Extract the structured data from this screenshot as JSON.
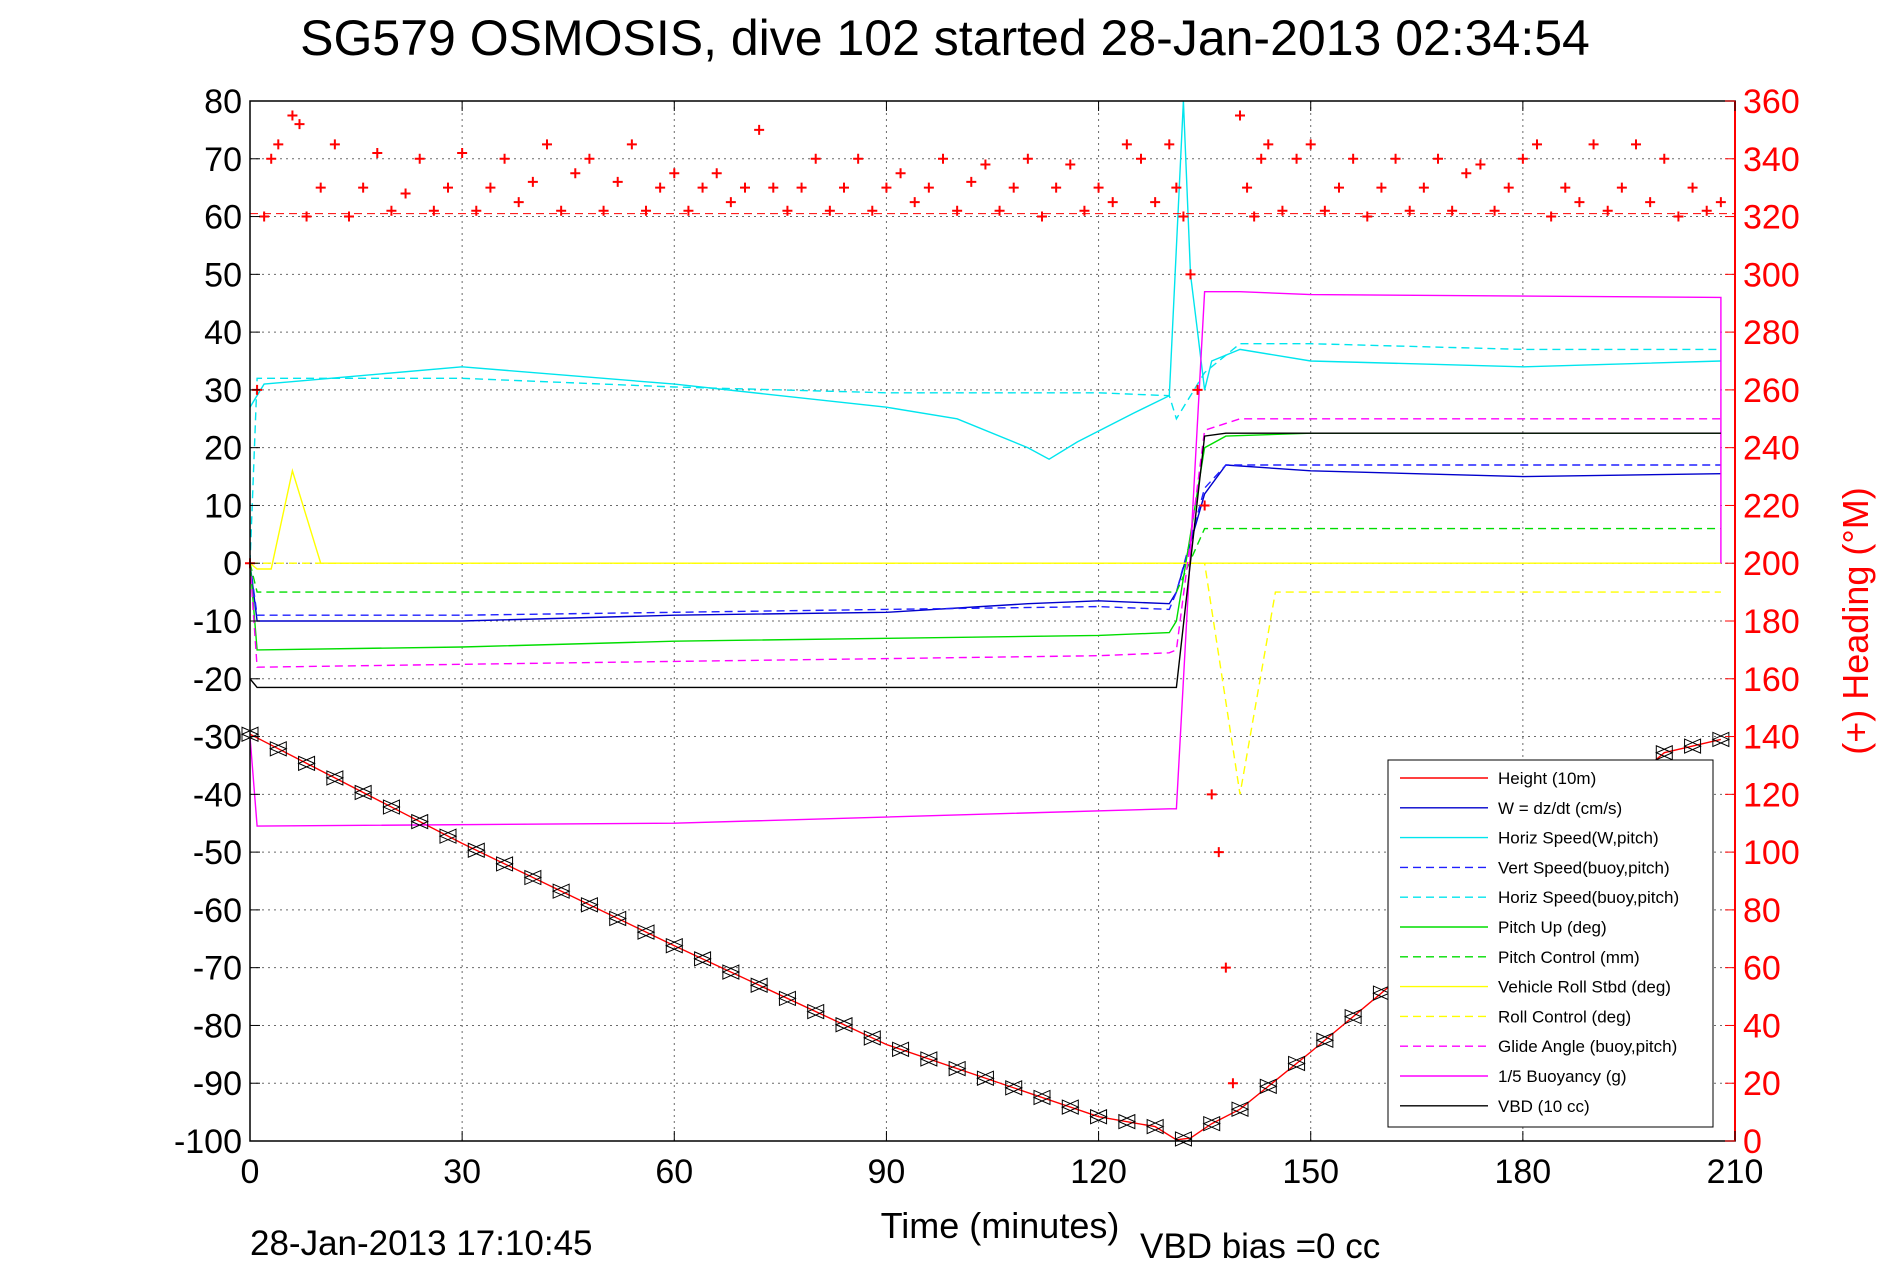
{
  "chart_data": {
    "type": "line",
    "title": "SG579 OSMOSIS, dive 102 started 28-Jan-2013 02:34:54",
    "xlabel": "Time (minutes)",
    "ylabel_right": "(+) Heading (°M)",
    "xlim": [
      0,
      210
    ],
    "ylim": [
      -100,
      80
    ],
    "ylim_right": [
      0,
      360
    ],
    "x_ticks": [
      "0",
      "30",
      "60",
      "90",
      "120",
      "150",
      "180",
      "210"
    ],
    "y_ticks": [
      "80",
      "70",
      "60",
      "50",
      "40",
      "30",
      "20",
      "10",
      "0",
      "-10",
      "-20",
      "-30",
      "-40",
      "-50",
      "-60",
      "-70",
      "-80",
      "-90",
      "-100"
    ],
    "y_ticks_right": [
      "360",
      "340",
      "320",
      "300",
      "280",
      "260",
      "240",
      "220",
      "200",
      "180",
      "160",
      "140",
      "120",
      "100",
      "80",
      "60",
      "40",
      "20",
      "0"
    ],
    "grid": true,
    "legend_position": "bottom-right",
    "colors": {
      "height": "#ff0000",
      "w": "#0000cc",
      "horiz_speed": "#00e5ee",
      "vert_speed_buoy": "#2020ff",
      "horiz_speed_buoy": "#00e5ee",
      "pitch_up": "#00dd00",
      "pitch_control": "#00dd00",
      "vehicle_roll": "#ffff00",
      "roll_control": "#ffff00",
      "glide_angle": "#ff00ff",
      "buoyancy": "#ff00ff",
      "vbd": "#000000",
      "heading": "#ff0000"
    },
    "series": [
      {
        "name": "Height (10m)",
        "style": "solid",
        "x": [
          0,
          30,
          60,
          90,
          120,
          128,
          131,
          133,
          136,
          140,
          150,
          160,
          170,
          180,
          190,
          200,
          208
        ],
        "y": [
          -29.6,
          -48.5,
          -66.2,
          -83.3,
          -95.8,
          -97.5,
          -99.8,
          -99.5,
          -97,
          -94.5,
          -84.6,
          -74.4,
          -64,
          -53.6,
          -43.2,
          -32.8,
          -30.5
        ]
      },
      {
        "name": "W = dz/dt (cm/s)",
        "style": "solid",
        "x": [
          0,
          1,
          5,
          30,
          60,
          90,
          110,
          120,
          130,
          131,
          135,
          138,
          150,
          180,
          208
        ],
        "y": [
          0,
          -10,
          -10,
          -10,
          -9,
          -8.5,
          -7,
          -6.5,
          -7,
          -5,
          12,
          17,
          16,
          15,
          15.5
        ]
      },
      {
        "name": "Horiz Speed(W,pitch)",
        "style": "solid",
        "x": [
          0,
          2,
          30,
          60,
          90,
          100,
          110,
          113,
          117,
          125,
          130,
          132,
          133,
          134,
          135,
          136,
          140,
          150,
          180,
          208
        ],
        "y": [
          27,
          31,
          34,
          31,
          27,
          25,
          20,
          18,
          21,
          26,
          29,
          80,
          50,
          40,
          30,
          35,
          37,
          35,
          34,
          35
        ]
      },
      {
        "name": "Vert Speed(buoy,pitch)",
        "style": "dashed",
        "x": [
          0,
          1,
          30,
          60,
          90,
          120,
          130,
          131,
          135,
          138,
          150,
          180,
          208
        ],
        "y": [
          0,
          -9,
          -9,
          -8.5,
          -8,
          -7.5,
          -8,
          -5,
          13,
          17,
          17,
          17,
          17
        ]
      },
      {
        "name": "Horiz Speed(buoy,pitch)",
        "style": "dashed",
        "x": [
          0,
          1,
          30,
          60,
          90,
          120,
          130,
          131,
          135,
          140,
          150,
          180,
          208
        ],
        "y": [
          0,
          32,
          32,
          30.5,
          29.5,
          29.5,
          29,
          25,
          33,
          38,
          38,
          37,
          37
        ]
      },
      {
        "name": "Pitch Up (deg)",
        "style": "solid",
        "x": [
          0,
          1,
          30,
          60,
          90,
          120,
          130,
          131,
          135,
          138,
          150,
          180,
          208
        ],
        "y": [
          0,
          -15,
          -14.5,
          -13.5,
          -13,
          -12.5,
          -12,
          -10,
          20,
          22,
          22.5,
          22.5,
          22.5
        ]
      },
      {
        "name": "Pitch Control (mm)",
        "style": "dashed",
        "x": [
          0,
          1,
          130,
          131,
          135,
          208
        ],
        "y": [
          0,
          -5,
          -5,
          -5,
          6,
          6
        ]
      },
      {
        "name": "Vehicle Roll Stbd (deg)",
        "style": "solid",
        "x": [
          0,
          1,
          3,
          6,
          10,
          130,
          131,
          135,
          208
        ],
        "y": [
          0,
          -1,
          -1,
          16,
          0,
          0,
          0,
          0,
          0
        ]
      },
      {
        "name": "Roll Control (deg)",
        "style": "dashed",
        "x": [
          0,
          1,
          10,
          130,
          131,
          135,
          140,
          145,
          208
        ],
        "y": [
          0,
          0,
          0,
          0,
          0,
          0,
          -40,
          -5,
          -5
        ]
      },
      {
        "name": "Glide Angle (buoy,pitch)",
        "style": "dashed",
        "x": [
          0,
          1,
          30,
          60,
          90,
          120,
          130,
          131,
          135,
          140,
          150,
          180,
          208
        ],
        "y": [
          0,
          -18,
          -17.5,
          -17,
          -16.5,
          -16,
          -15.5,
          -15,
          23,
          25,
          25,
          25,
          25
        ]
      },
      {
        "name": "1/5 Buoyancy (g)",
        "style": "solid",
        "x": [
          0,
          1,
          60,
          130,
          131,
          135,
          140,
          150,
          208,
          208
        ],
        "y": [
          -30,
          -45.5,
          -45,
          -42.5,
          -42.5,
          47,
          47,
          46.5,
          46,
          0
        ]
      },
      {
        "name": "VBD (10 cc)",
        "style": "solid",
        "x": [
          0,
          1,
          130,
          131,
          135,
          138,
          208
        ],
        "y": [
          -20,
          -21.5,
          -21.5,
          -21.5,
          22,
          22.5,
          22.5
        ]
      }
    ],
    "heading_series": {
      "name": "(+) Heading",
      "marker": "+",
      "axis": "right",
      "reference_line": 321,
      "x": [
        0,
        1,
        2,
        3,
        4,
        6,
        7,
        8,
        10,
        12,
        14,
        16,
        18,
        20,
        22,
        24,
        26,
        28,
        30,
        32,
        34,
        36,
        38,
        40,
        42,
        44,
        46,
        48,
        50,
        52,
        54,
        56,
        58,
        60,
        62,
        64,
        66,
        68,
        70,
        72,
        74,
        76,
        78,
        80,
        82,
        84,
        86,
        88,
        90,
        92,
        94,
        96,
        98,
        100,
        102,
        104,
        106,
        108,
        110,
        112,
        114,
        116,
        118,
        120,
        122,
        124,
        126,
        128,
        130,
        131,
        132,
        133,
        134,
        135,
        136,
        137,
        138,
        139,
        140,
        141,
        142,
        143,
        144,
        146,
        148,
        150,
        152,
        154,
        156,
        158,
        160,
        162,
        164,
        166,
        168,
        170,
        172,
        174,
        176,
        178,
        180,
        182,
        184,
        186,
        188,
        190,
        192,
        194,
        196,
        198,
        200,
        202,
        204,
        206,
        208
      ],
      "y": [
        200,
        260,
        320,
        340,
        345,
        355,
        352,
        320,
        330,
        345,
        320,
        330,
        342,
        322,
        328,
        340,
        322,
        330,
        342,
        322,
        330,
        340,
        325,
        332,
        345,
        322,
        335,
        340,
        322,
        332,
        345,
        322,
        330,
        335,
        322,
        330,
        335,
        325,
        330,
        350,
        330,
        322,
        330,
        340,
        322,
        330,
        340,
        322,
        330,
        335,
        325,
        330,
        340,
        322,
        332,
        338,
        322,
        330,
        340,
        320,
        330,
        338,
        322,
        330,
        325,
        345,
        340,
        325,
        345,
        330,
        320,
        300,
        260,
        220,
        120,
        100,
        60,
        20,
        355,
        330,
        320,
        340,
        345,
        322,
        340,
        345,
        322,
        330,
        340,
        320,
        330,
        340,
        322,
        330,
        340,
        322,
        335,
        338,
        322,
        330,
        340,
        345,
        320,
        330,
        325,
        345,
        322,
        330,
        345,
        325,
        340,
        320,
        330,
        322,
        325
      ]
    },
    "annotations": {
      "timestamp": "28-Jan-2013 17:10:45",
      "vbd_bias": "VBD bias =0 cc"
    }
  }
}
